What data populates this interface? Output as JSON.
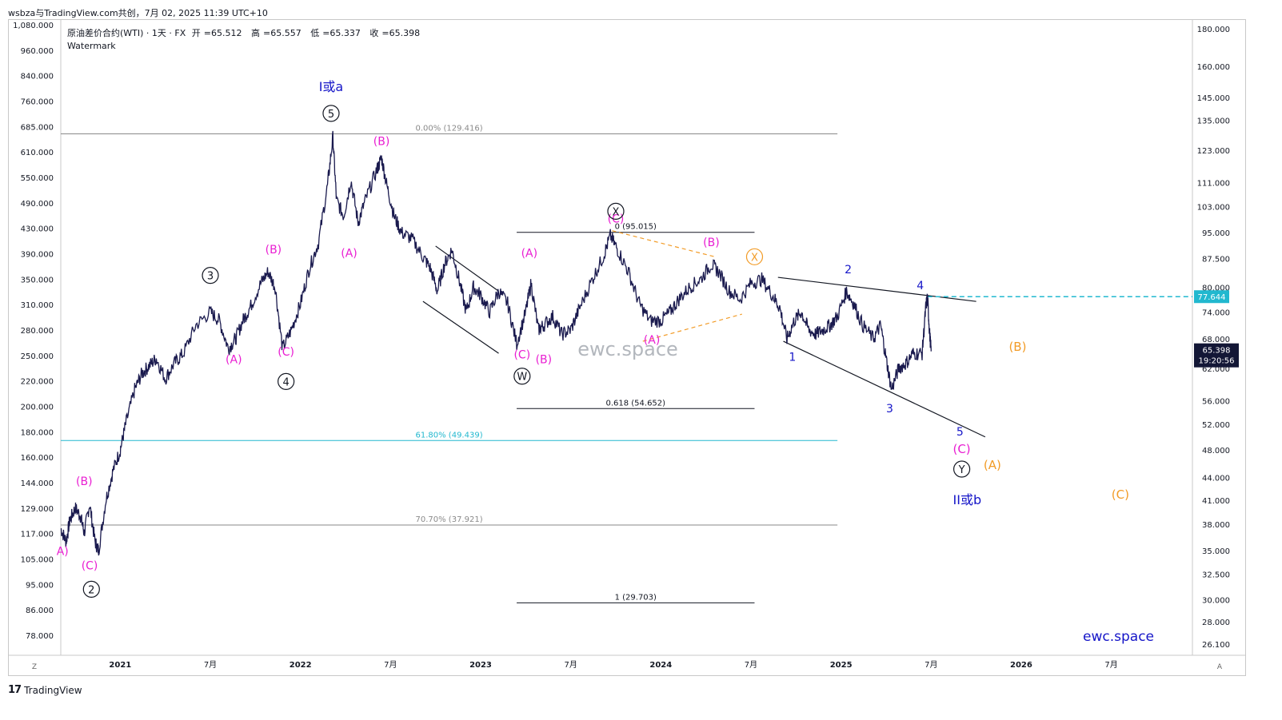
{
  "header": {
    "title": "wsbza与TradingView.com共创，7月 02, 2025 11:39 UTC+10"
  },
  "legend": {
    "symbol": "原油差价合约(WTI) · 1天 · FX",
    "open_label": "开",
    "open": "65.512",
    "high_label": "高",
    "high": "65.557",
    "low_label": "低",
    "low": "65.337",
    "close_label": "收",
    "close": "65.398",
    "watermark": "Watermark"
  },
  "footer": {
    "brand": "TradingView",
    "logo": "17"
  },
  "colors": {
    "candle": "#1a1a4e",
    "magenta": "#e91ed2",
    "blue": "#1515c8",
    "orange": "#f29b26",
    "teal": "#22b8cf",
    "gray": "#8a8a8a"
  },
  "chart_data": {
    "type": "line",
    "title": "原油差价合约(WTI) · 1天 · FX",
    "scale": "log",
    "left_axis_ticks": [
      "1,080.000",
      "960.000",
      "840.000",
      "760.000",
      "685.000",
      "610.000",
      "550.000",
      "490.000",
      "430.000",
      "390.000",
      "350.000",
      "310.000",
      "280.000",
      "250.000",
      "220.000",
      "200.000",
      "180.000",
      "160.000",
      "144.000",
      "129.000",
      "117.000",
      "105.000",
      "95.000",
      "86.000",
      "78.000"
    ],
    "right_axis_ticks": [
      "180.000",
      "160.000",
      "145.000",
      "135.000",
      "123.000",
      "111.000",
      "103.000",
      "95.000",
      "87.500",
      "80.000",
      "74.000",
      "68.000",
      "62.000",
      "56.000",
      "52.000",
      "48.000",
      "44.000",
      "41.000",
      "38.000",
      "35.000",
      "32.500",
      "30.000",
      "28.000",
      "26.100"
    ],
    "right_axis_values": [
      180,
      160,
      145,
      135,
      123,
      111,
      103,
      95,
      87.5,
      80,
      74,
      68,
      62,
      56,
      52,
      48,
      44,
      41,
      38,
      35,
      32.5,
      30,
      28,
      26.1
    ],
    "x_ticks": [
      {
        "label": "2021",
        "t": 2021.0
      },
      {
        "label": "7月",
        "t": 2021.5
      },
      {
        "label": "2022",
        "t": 2022.0
      },
      {
        "label": "7月",
        "t": 2022.5
      },
      {
        "label": "2023",
        "t": 2023.0
      },
      {
        "label": "7月",
        "t": 2023.5
      },
      {
        "label": "2024",
        "t": 2024.0
      },
      {
        "label": "7月",
        "t": 2024.5
      },
      {
        "label": "2025",
        "t": 2025.0
      },
      {
        "label": "7月",
        "t": 2025.5
      },
      {
        "label": "2026",
        "t": 2026.0
      },
      {
        "label": "7月",
        "t": 2026.5
      }
    ],
    "x_range": [
      2020.67,
      2026.95
    ],
    "y_range": [
      25.2,
      185
    ],
    "price_path": [
      [
        2020.67,
        37.5
      ],
      [
        2020.7,
        36
      ],
      [
        2020.72,
        38.5
      ],
      [
        2020.75,
        40
      ],
      [
        2020.78,
        39
      ],
      [
        2020.8,
        37
      ],
      [
        2020.83,
        40.5
      ],
      [
        2020.86,
        36
      ],
      [
        2020.88,
        35
      ],
      [
        2020.92,
        41
      ],
      [
        2020.96,
        45
      ],
      [
        2021.0,
        48
      ],
      [
        2021.03,
        52
      ],
      [
        2021.08,
        58
      ],
      [
        2021.12,
        61
      ],
      [
        2021.16,
        62.5
      ],
      [
        2021.2,
        64
      ],
      [
        2021.25,
        60
      ],
      [
        2021.3,
        63
      ],
      [
        2021.35,
        65
      ],
      [
        2021.42,
        71
      ],
      [
        2021.5,
        74
      ],
      [
        2021.55,
        72
      ],
      [
        2021.6,
        66
      ],
      [
        2021.64,
        68
      ],
      [
        2021.68,
        72
      ],
      [
        2021.72,
        75
      ],
      [
        2021.78,
        81
      ],
      [
        2021.82,
        84
      ],
      [
        2021.86,
        80
      ],
      [
        2021.9,
        66
      ],
      [
        2021.95,
        70
      ],
      [
        2022.0,
        76
      ],
      [
        2022.05,
        85
      ],
      [
        2022.1,
        92
      ],
      [
        2022.15,
        110
      ],
      [
        2022.18,
        128
      ],
      [
        2022.2,
        105
      ],
      [
        2022.24,
        100
      ],
      [
        2022.28,
        112
      ],
      [
        2022.32,
        98
      ],
      [
        2022.36,
        105
      ],
      [
        2022.42,
        115
      ],
      [
        2022.45,
        120
      ],
      [
        2022.48,
        110
      ],
      [
        2022.52,
        100
      ],
      [
        2022.56,
        95
      ],
      [
        2022.62,
        93
      ],
      [
        2022.68,
        88
      ],
      [
        2022.72,
        85
      ],
      [
        2022.76,
        79
      ],
      [
        2022.8,
        86
      ],
      [
        2022.84,
        90
      ],
      [
        2022.88,
        82
      ],
      [
        2022.92,
        74
      ],
      [
        2022.96,
        80
      ],
      [
        2023.0,
        78
      ],
      [
        2023.05,
        74
      ],
      [
        2023.1,
        79
      ],
      [
        2023.15,
        76
      ],
      [
        2023.2,
        67
      ],
      [
        2023.25,
        74
      ],
      [
        2023.28,
        81
      ],
      [
        2023.32,
        70
      ],
      [
        2023.35,
        71
      ],
      [
        2023.4,
        73
      ],
      [
        2023.45,
        69
      ],
      [
        2023.5,
        70
      ],
      [
        2023.55,
        75
      ],
      [
        2023.62,
        82
      ],
      [
        2023.68,
        88
      ],
      [
        2023.72,
        94
      ],
      [
        2023.76,
        90
      ],
      [
        2023.82,
        84
      ],
      [
        2023.88,
        76
      ],
      [
        2023.94,
        72
      ],
      [
        2024.0,
        72
      ],
      [
        2024.05,
        74
      ],
      [
        2024.1,
        77
      ],
      [
        2024.16,
        80
      ],
      [
        2024.22,
        82
      ],
      [
        2024.28,
        86
      ],
      [
        2024.32,
        84
      ],
      [
        2024.38,
        79
      ],
      [
        2024.44,
        77
      ],
      [
        2024.5,
        81
      ],
      [
        2024.56,
        82
      ],
      [
        2024.62,
        78
      ],
      [
        2024.66,
        75
      ],
      [
        2024.7,
        68
      ],
      [
        2024.74,
        72
      ],
      [
        2024.78,
        74
      ],
      [
        2024.82,
        70
      ],
      [
        2024.86,
        69
      ],
      [
        2024.9,
        70
      ],
      [
        2024.94,
        71
      ],
      [
        2024.98,
        73
      ],
      [
        2025.03,
        79
      ],
      [
        2025.07,
        76
      ],
      [
        2025.12,
        71
      ],
      [
        2025.18,
        68
      ],
      [
        2025.22,
        71
      ],
      [
        2025.25,
        64
      ],
      [
        2025.28,
        58
      ],
      [
        2025.32,
        62
      ],
      [
        2025.36,
        63
      ],
      [
        2025.4,
        65
      ],
      [
        2025.45,
        65
      ],
      [
        2025.47,
        75
      ],
      [
        2025.48,
        77.6
      ],
      [
        2025.49,
        70
      ],
      [
        2025.5,
        65.4
      ]
    ],
    "levels": [
      {
        "label": "0.00% (129.416)",
        "value": 129.416,
        "x0": 2020.67,
        "x1": 2024.98,
        "color": "#8a8a8a"
      },
      {
        "label": "0 (95.015)",
        "value": 95.015,
        "x0": 2023.2,
        "x1": 2024.52,
        "color": "#131722"
      },
      {
        "label": "0.618 (54.652)",
        "value": 54.652,
        "x0": 2023.2,
        "x1": 2024.52,
        "color": "#131722"
      },
      {
        "label": "61.80% (49.439)",
        "value": 49.439,
        "x0": 2020.67,
        "x1": 2024.98,
        "color": "#22b8cf"
      },
      {
        "label": "70.70% (37.921)",
        "value": 37.921,
        "x0": 2020.67,
        "x1": 2024.98,
        "color": "#8a8a8a"
      },
      {
        "label": "1 (29.703)",
        "value": 29.703,
        "x0": 2023.2,
        "x1": 2024.52,
        "color": "#131722"
      }
    ],
    "current_price": {
      "value": "65.398",
      "countdown": "19:20:56"
    },
    "dashed_level": {
      "value": 77.644,
      "label": "77.644"
    },
    "annotations": [
      {
        "text": "I或a",
        "t": 2022.17,
        "v": 148,
        "color": "#1515c8",
        "size": 16
      },
      {
        "text": "(B)",
        "t": 2022.45,
        "v": 125,
        "color": "#e91ed2",
        "size": 14
      },
      {
        "text": "(A)",
        "t": 2022.27,
        "v": 88,
        "color": "#e91ed2",
        "size": 14
      },
      {
        "text": "(B)",
        "t": 2021.85,
        "v": 89,
        "color": "#e91ed2",
        "size": 14
      },
      {
        "text": "(A)",
        "t": 2021.63,
        "v": 63,
        "color": "#e91ed2",
        "size": 14
      },
      {
        "text": "(C)",
        "t": 2021.92,
        "v": 64.5,
        "color": "#e91ed2",
        "size": 14
      },
      {
        "text": "(B)",
        "t": 2020.8,
        "v": 43,
        "color": "#e91ed2",
        "size": 14
      },
      {
        "text": "(C)",
        "t": 2020.83,
        "v": 33,
        "color": "#e91ed2",
        "size": 14
      },
      {
        "text": "A)",
        "t": 2020.68,
        "v": 34.5,
        "color": "#e91ed2",
        "size": 14
      },
      {
        "text": "(A)",
        "t": 2023.27,
        "v": 88,
        "color": "#e91ed2",
        "size": 14
      },
      {
        "text": "(C)",
        "t": 2023.23,
        "v": 64,
        "color": "#e91ed2",
        "size": 14
      },
      {
        "text": "(B)",
        "t": 2023.35,
        "v": 63,
        "color": "#e91ed2",
        "size": 14
      },
      {
        "text": "(C)",
        "t": 2023.75,
        "v": 98,
        "color": "#e91ed2",
        "size": 14
      },
      {
        "text": "(A)",
        "t": 2023.95,
        "v": 67,
        "color": "#e91ed2",
        "size": 14
      },
      {
        "text": "(B)",
        "t": 2024.28,
        "v": 91,
        "color": "#e91ed2",
        "size": 14
      },
      {
        "text": "(C)",
        "t": 2025.67,
        "v": 47.5,
        "color": "#e91ed2",
        "size": 15
      },
      {
        "text": "1",
        "t": 2024.73,
        "v": 63.5,
        "color": "#1515c8",
        "size": 14
      },
      {
        "text": "2",
        "t": 2025.04,
        "v": 83.5,
        "color": "#1515c8",
        "size": 14
      },
      {
        "text": "3",
        "t": 2025.27,
        "v": 54,
        "color": "#1515c8",
        "size": 14
      },
      {
        "text": "4",
        "t": 2025.44,
        "v": 79.5,
        "color": "#1515c8",
        "size": 14
      },
      {
        "text": "5",
        "t": 2025.66,
        "v": 50.2,
        "color": "#1515c8",
        "size": 14
      },
      {
        "text": "II或b",
        "t": 2025.7,
        "v": 40.5,
        "color": "#1515c8",
        "size": 16
      },
      {
        "text": "(B)",
        "t": 2025.98,
        "v": 65.5,
        "color": "#f29b26",
        "size": 15
      },
      {
        "text": "(A)",
        "t": 2025.84,
        "v": 45.2,
        "color": "#f29b26",
        "size": 15
      },
      {
        "text": "(C)",
        "t": 2026.55,
        "v": 41.2,
        "color": "#f29b26",
        "size": 15
      }
    ],
    "circled_labels": [
      {
        "text": "5",
        "t": 2022.17,
        "v": 138,
        "style": "black"
      },
      {
        "text": "3",
        "t": 2021.5,
        "v": 83,
        "style": "black"
      },
      {
        "text": "4",
        "t": 2021.92,
        "v": 59.5,
        "style": "black"
      },
      {
        "text": "2",
        "t": 2020.84,
        "v": 31,
        "style": "black"
      },
      {
        "text": "W",
        "t": 2023.23,
        "v": 60.5,
        "style": "black"
      },
      {
        "text": "X",
        "t": 2023.75,
        "v": 101.5,
        "style": "black"
      },
      {
        "text": "X",
        "t": 2024.52,
        "v": 88,
        "style": "orange"
      },
      {
        "text": "Y",
        "t": 2025.67,
        "v": 45.2,
        "style": "black"
      }
    ],
    "trendlines": [
      {
        "from": [
          2024.65,
          82.5
        ],
        "to": [
          2025.75,
          76.5
        ],
        "color": "#131722",
        "dash": false
      },
      {
        "from": [
          2024.68,
          67.5
        ],
        "to": [
          2025.8,
          50
        ],
        "color": "#131722",
        "dash": false
      },
      {
        "from": [
          2022.75,
          91
        ],
        "to": [
          2023.1,
          79
        ],
        "color": "#131722",
        "dash": false
      },
      {
        "from": [
          2022.68,
          76.5
        ],
        "to": [
          2023.1,
          65
        ],
        "color": "#131722",
        "dash": false
      },
      {
        "from": [
          2023.73,
          95.5
        ],
        "to": [
          2024.3,
          88
        ],
        "color": "#f29b26",
        "dash": true
      },
      {
        "from": [
          2023.9,
          67.5
        ],
        "to": [
          2024.45,
          73.5
        ],
        "color": "#f29b26",
        "dash": true
      }
    ],
    "watermark_texts": {
      "center": "ewc.space",
      "corner": "ewc.space"
    }
  }
}
